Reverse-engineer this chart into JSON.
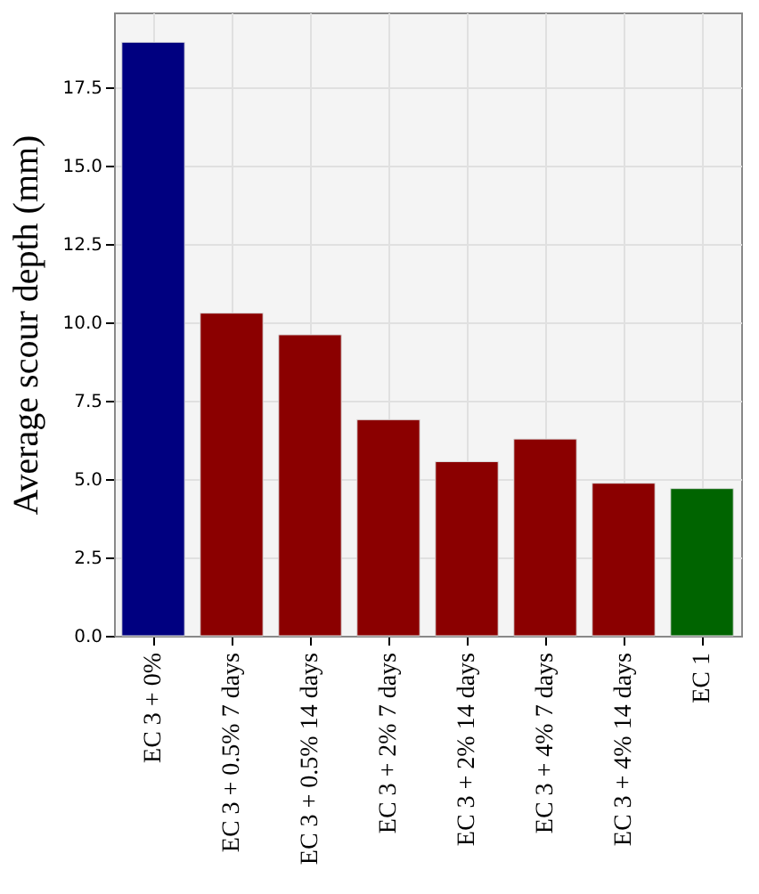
{
  "chart_data": {
    "type": "bar",
    "ylabel": "Average scour depth (mm)",
    "categories": [
      "EC 3 + 0%",
      "EC 3 + 0.5% 7 days",
      "EC 3 + 0.5% 14 days",
      "EC 3 + 2% 7 days",
      "EC 3 + 2% 14 days",
      "EC 3 + 4% 7 days",
      "EC 3 + 4% 14 days",
      "EC 1"
    ],
    "values": [
      18.95,
      10.3,
      9.61,
      6.9,
      5.56,
      6.28,
      4.87,
      4.7
    ],
    "colors": [
      "#000080",
      "#8b0000",
      "#8b0000",
      "#8b0000",
      "#8b0000",
      "#8b0000",
      "#8b0000",
      "#006400"
    ],
    "ylim": [
      0,
      19.9
    ],
    "yticks": [
      {
        "value": 0,
        "label": "0.0"
      },
      {
        "value": 2.5,
        "label": "2.5"
      },
      {
        "value": 5,
        "label": "5.0"
      },
      {
        "value": 7.5,
        "label": "7.5"
      },
      {
        "value": 10,
        "label": "10.0"
      },
      {
        "value": 12.5,
        "label": "12.5"
      },
      {
        "value": 15,
        "label": "15.0"
      },
      {
        "value": 17.5,
        "label": "17.5"
      }
    ],
    "grid": true
  }
}
